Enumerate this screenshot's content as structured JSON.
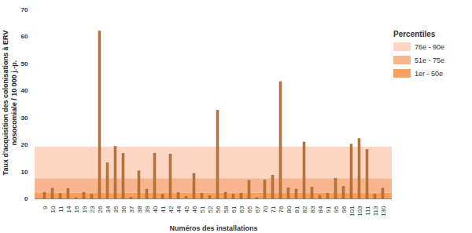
{
  "chart_data": {
    "type": "bar",
    "x_label": "Numéros des installations",
    "y_label": "Taux d'acquisition des colonisations à ERV nosocomiale / 10 000 j.-p.",
    "categories": [
      "9",
      "10",
      "11",
      "14",
      "16",
      "19",
      "23",
      "26",
      "34",
      "35",
      "36",
      "37",
      "38",
      "39",
      "40",
      "41",
      "42",
      "44",
      "45",
      "46",
      "51",
      "52",
      "56",
      "58",
      "61",
      "63",
      "65",
      "67",
      "70",
      "71",
      "76",
      "80",
      "81",
      "82",
      "83",
      "84",
      "91",
      "95",
      "96",
      "101",
      "103",
      "111",
      "113",
      "130"
    ],
    "values": [
      2.3,
      3.8,
      1.8,
      3.7,
      0.3,
      2.3,
      1.5,
      62,
      13.2,
      19.3,
      16.7,
      0.5,
      10.2,
      3.5,
      16.8,
      1.5,
      16.4,
      2.2,
      0.8,
      9.3,
      2.0,
      1.0,
      32.7,
      2.3,
      1.5,
      2.0,
      6.7,
      0.3,
      6.8,
      8.6,
      43.3,
      3.9,
      3.5,
      20.9,
      4.2,
      1.2,
      2.0,
      7.5,
      4.5,
      20.1,
      22.2,
      18.1,
      1.5,
      3.8
    ],
    "color": "#c0762f",
    "ylim": [
      0,
      70
    ],
    "yticks": [
      0,
      10,
      20,
      30,
      40,
      50,
      60,
      70
    ],
    "grid": false,
    "legend": "right",
    "legend_title": "Percentiles",
    "percentile_bands": [
      {
        "label": "1er - 50e",
        "from": 0,
        "to": 2.2,
        "color": "#f6a062"
      },
      {
        "label": "51e - 75e",
        "from": 2.2,
        "to": 7.5,
        "color": "#f8b690"
      },
      {
        "label": "76e - 90e",
        "from": 7.5,
        "to": 19.2,
        "color": "#fcd6c2"
      }
    ]
  }
}
